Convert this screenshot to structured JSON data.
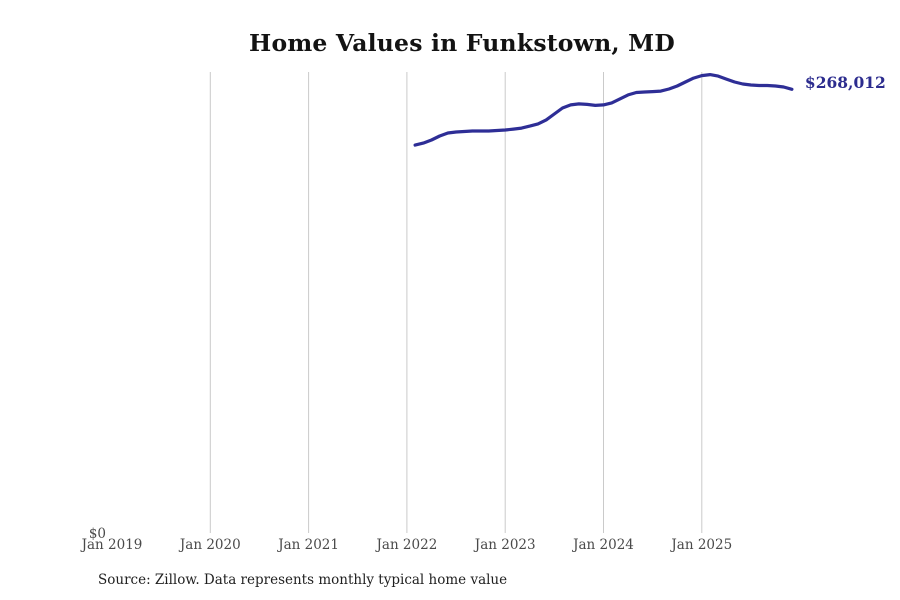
{
  "title": "Home Values in Funkstown, MD",
  "source_note": "Source: Zillow. Data represents monthly typical home value",
  "current_value_label": "$268,012",
  "y_axis": {
    "zero_label": "$0"
  },
  "x_axis": {
    "ticks": [
      {
        "label": "Jan 2019",
        "month": "2019-01",
        "gridline": false
      },
      {
        "label": "Jan 2020",
        "month": "2020-01",
        "gridline": true
      },
      {
        "label": "Jan 2021",
        "month": "2021-01",
        "gridline": true
      },
      {
        "label": "Jan 2022",
        "month": "2022-01",
        "gridline": true
      },
      {
        "label": "Jan 2023",
        "month": "2023-01",
        "gridline": true
      },
      {
        "label": "Jan 2024",
        "month": "2024-01",
        "gridline": true
      },
      {
        "label": "Jan 2025",
        "month": "2025-01",
        "gridline": true
      }
    ]
  },
  "colors": {
    "line": "#2e2e96",
    "value_label": "#2c2c8e",
    "gridline": "#cacaca",
    "axis_text": "#4a4a4a",
    "title": "#131313",
    "source": "#1f1f1f",
    "background": "#ffffff"
  },
  "chart_data": {
    "type": "line",
    "title": "Home Values in Funkstown, MD",
    "series_name": "Monthly typical home value",
    "unit": "USD",
    "color": "#2e2e96",
    "end_label": "$268,012",
    "legend": "none",
    "grid": "vertical",
    "ylim": [
      0,
      278000
    ],
    "x_range": [
      "Jan 2019",
      "Jan 2026"
    ],
    "x_axis_ticks": [
      "Jan 2019",
      "Jan 2020",
      "Jan 2021",
      "Jan 2022",
      "Jan 2023",
      "Jan 2024",
      "Jan 2025"
    ],
    "x": [
      "2022-02",
      "2022-03",
      "2022-04",
      "2022-05",
      "2022-06",
      "2022-07",
      "2022-08",
      "2022-09",
      "2022-10",
      "2022-11",
      "2022-12",
      "2023-01",
      "2023-02",
      "2023-03",
      "2023-04",
      "2023-05",
      "2023-06",
      "2023-07",
      "2023-08",
      "2023-09",
      "2023-10",
      "2023-11",
      "2023-12",
      "2024-01",
      "2024-02",
      "2024-03",
      "2024-04",
      "2024-05",
      "2024-06",
      "2024-07",
      "2024-08",
      "2024-09",
      "2024-10",
      "2024-11",
      "2024-12",
      "2025-01",
      "2025-02",
      "2025-03",
      "2025-04",
      "2025-05",
      "2025-06",
      "2025-07",
      "2025-08",
      "2025-09",
      "2025-10",
      "2025-11",
      "2025-12"
    ],
    "values": [
      234300,
      235500,
      237400,
      239800,
      241600,
      242200,
      242500,
      242800,
      242800,
      242800,
      243100,
      243400,
      244000,
      244600,
      245800,
      247100,
      249500,
      253100,
      256700,
      258600,
      259200,
      258900,
      258300,
      258600,
      259800,
      262200,
      264600,
      266100,
      266400,
      266600,
      266900,
      268200,
      270000,
      272400,
      274800,
      276300,
      276900,
      276000,
      274200,
      272400,
      271200,
      270600,
      270300,
      270300,
      270000,
      269400,
      268012
    ]
  }
}
